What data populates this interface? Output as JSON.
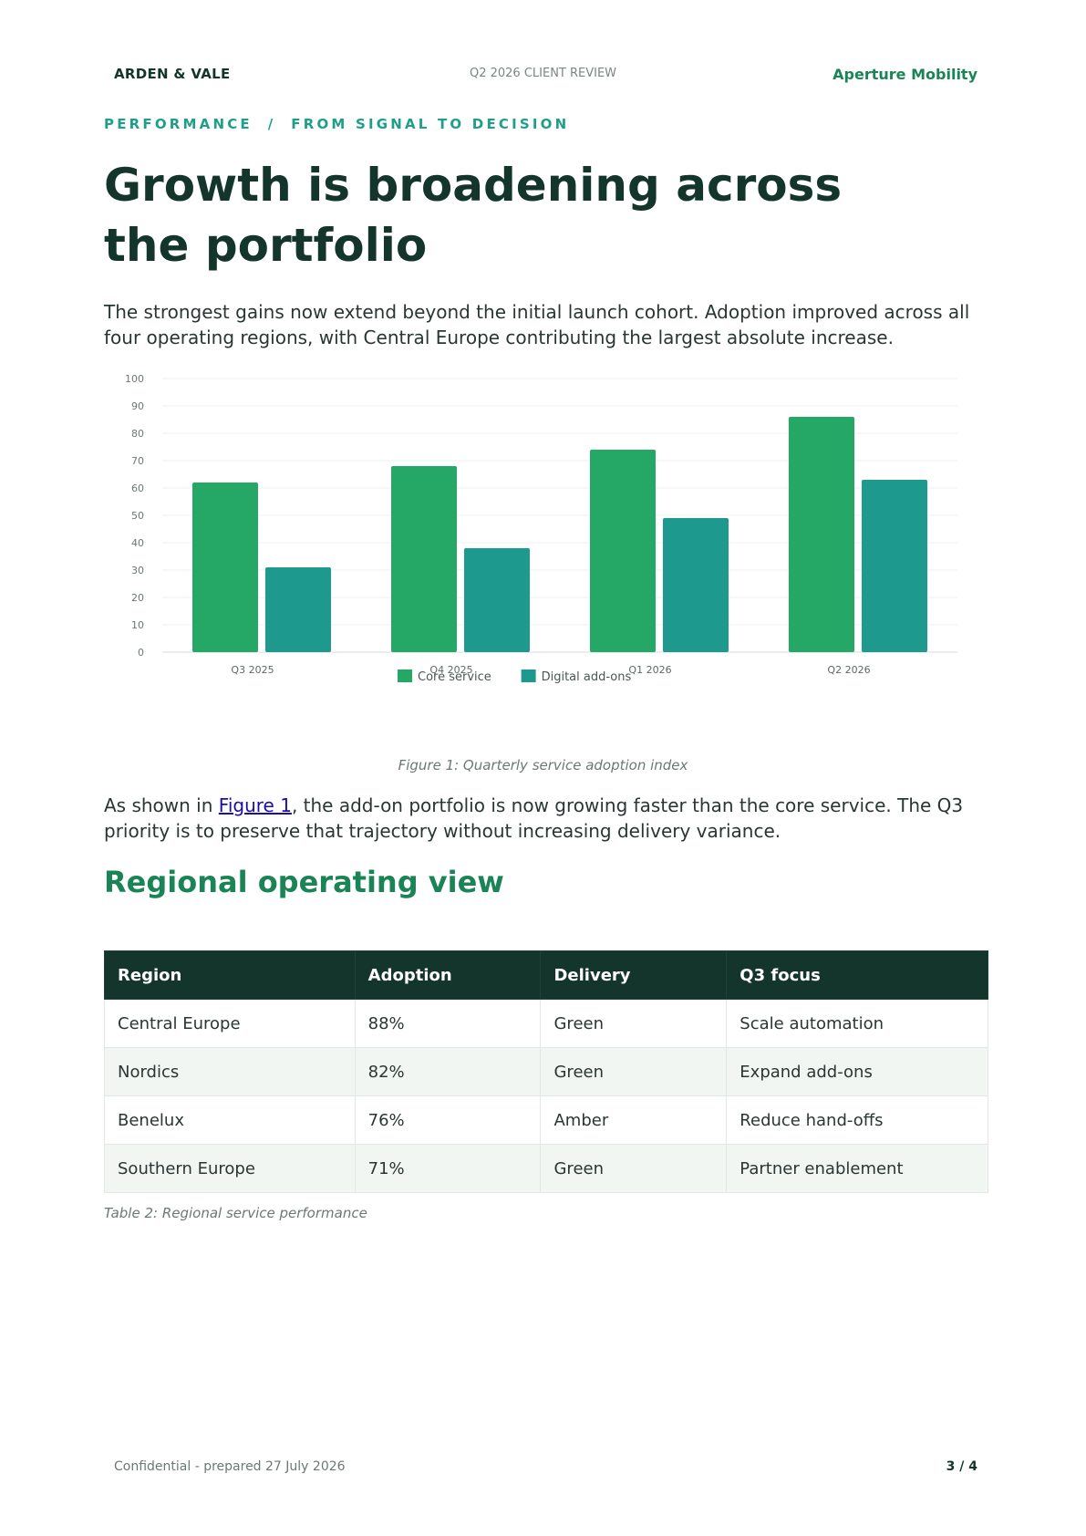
{
  "header": {
    "brand": "ARDEN & VALE",
    "doc_label": "Q2 2026 CLIENT REVIEW",
    "client": "Aperture Mobility"
  },
  "kicker": "PERFORMANCE  /  FROM SIGNAL TO DECISION",
  "title": "Growth is broadening across the portfolio",
  "intro": "The strongest gains now extend beyond the initial launch cohort. Adoption improved across all four operating regions, with Central Europe contributing the largest absolute increase.",
  "chart_data": {
    "type": "bar",
    "categories": [
      "Q3 2025",
      "Q4 2025",
      "Q1 2026",
      "Q2 2026"
    ],
    "series": [
      {
        "name": "Core service",
        "values": [
          62,
          68,
          74,
          86
        ],
        "color": "#25a865"
      },
      {
        "name": "Digital add-ons",
        "values": [
          31,
          38,
          49,
          63
        ],
        "color": "#1e998e"
      }
    ],
    "ylim": [
      0,
      100
    ],
    "yticks": [
      "0",
      "10",
      "20",
      "30",
      "40",
      "50",
      "60",
      "70",
      "80",
      "90",
      "100"
    ],
    "grid": true,
    "legend": "bottom-center",
    "caption": "Figure 1: Quarterly service adoption index"
  },
  "para2": {
    "before": "As shown in ",
    "link": "Figure 1",
    "after": ", the add-on portfolio is now growing faster than the core service. The Q3 priority is to preserve that trajectory without increasing delivery variance."
  },
  "section_title": "Regional operating view",
  "table": {
    "headers": [
      "Region",
      "Adoption",
      "Delivery",
      "Q3 focus"
    ],
    "rows": [
      [
        "Central Europe",
        "88%",
        "Green",
        "Scale automation"
      ],
      [
        "Nordics",
        "82%",
        "Green",
        "Expand add-ons"
      ],
      [
        "Benelux",
        "76%",
        "Amber",
        "Reduce hand-offs"
      ],
      [
        "Southern Europe",
        "71%",
        "Green",
        "Partner enablement"
      ]
    ],
    "caption": "Table 2: Regional service performance"
  },
  "footer": {
    "left": "Confidential - prepared 27 July 2026",
    "page": "3 / 4"
  }
}
